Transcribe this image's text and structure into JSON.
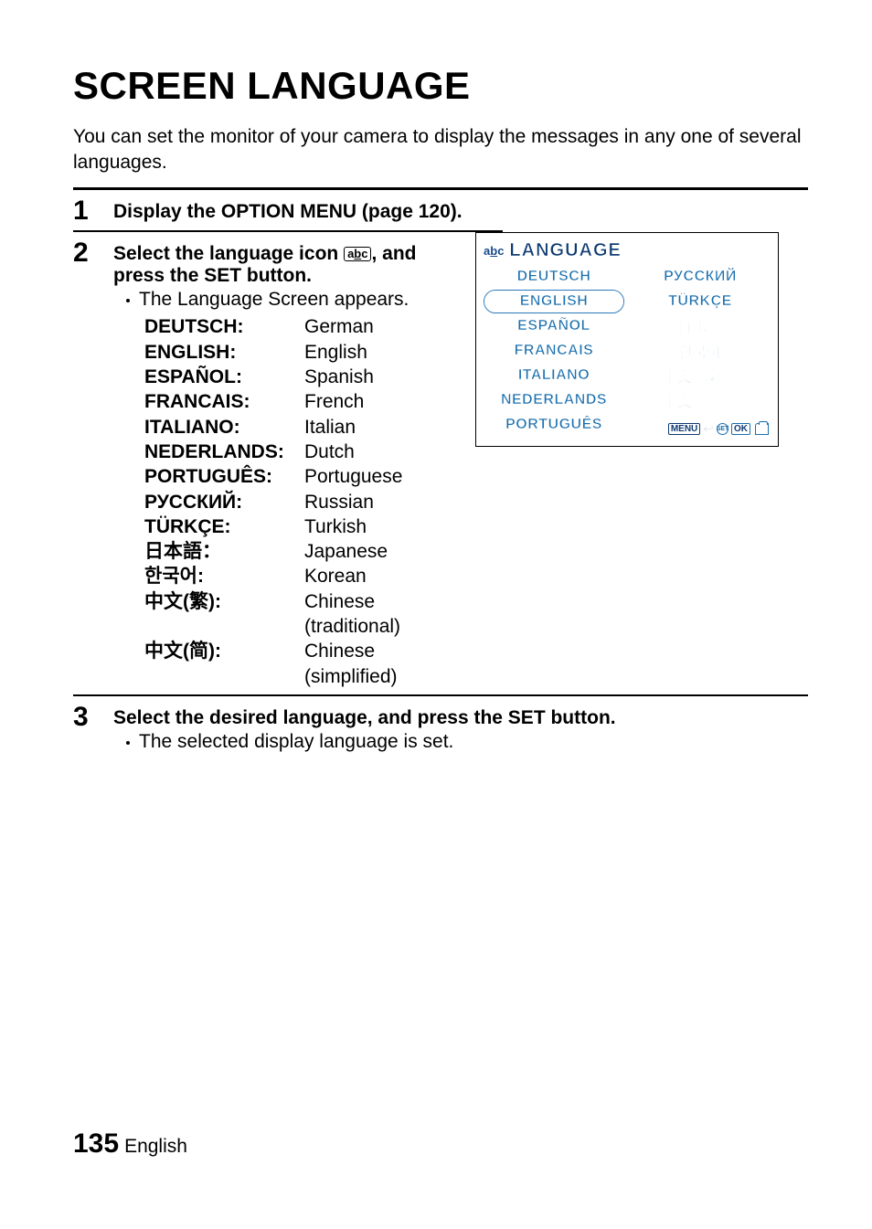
{
  "title": "SCREEN LANGUAGE",
  "intro": "You can set the monitor of your camera to display the messages in any one of several languages.",
  "steps": {
    "s1": {
      "num": "1",
      "text": "Display the OPTION MENU (page 120)."
    },
    "s2": {
      "num": "2",
      "line1a": "Select the language icon ",
      "line1b": ", and press the SET button.",
      "bullet": "The Language Screen appears.",
      "langs": [
        {
          "k": "DEUTSCH:",
          "v": "German"
        },
        {
          "k": "ENGLISH:",
          "v": "English"
        },
        {
          "k": "ESPAÑOL:",
          "v": "Spanish"
        },
        {
          "k": "FRANCAIS:",
          "v": "French"
        },
        {
          "k": "ITALIANO:",
          "v": "Italian"
        },
        {
          "k": "NEDERLANDS:",
          "v": "Dutch"
        },
        {
          "k": "PORTUGUÊS:",
          "v": "Portuguese"
        },
        {
          "k": "РУССКИЙ:",
          "v": "Russian"
        },
        {
          "k": "TÜRKÇE:",
          "v": "Turkish"
        },
        {
          "k": "日本語：",
          "v": "Japanese"
        },
        {
          "k": "한국어:",
          "v": "Korean"
        },
        {
          "k": "中文(繁):",
          "v": "Chinese (traditional)"
        },
        {
          "k": "中文(简):",
          "v": "Chinese (simplified)"
        }
      ]
    },
    "s3": {
      "num": "3",
      "text": "Select the desired language, and press the SET button.",
      "bullet": "The selected display language is set."
    }
  },
  "lcd": {
    "title_text": "LANGUAGE",
    "selected_index": 1,
    "options": [
      "DEUTSCH",
      "РУССКИЙ",
      "ENGLISH",
      "TÜRKÇE",
      "ESPAÑOL",
      "日本語",
      "FRANCAIS",
      "한국어",
      "ITALIANO",
      "中文（繁）",
      "NEDERLANDS",
      "中文（简）",
      "PORTUGUÊS",
      ""
    ],
    "foot_menu": "MENU",
    "foot_set": "SET",
    "foot_ok": "OK",
    "colors": {
      "text": "#1a6fae",
      "title": "#0f3b73",
      "outline": "#ffffff",
      "border": "#000000"
    }
  },
  "footer": {
    "page": "135",
    "label": "English"
  },
  "icon_label": {
    "a": "a",
    "b": "b",
    "c": "c"
  }
}
